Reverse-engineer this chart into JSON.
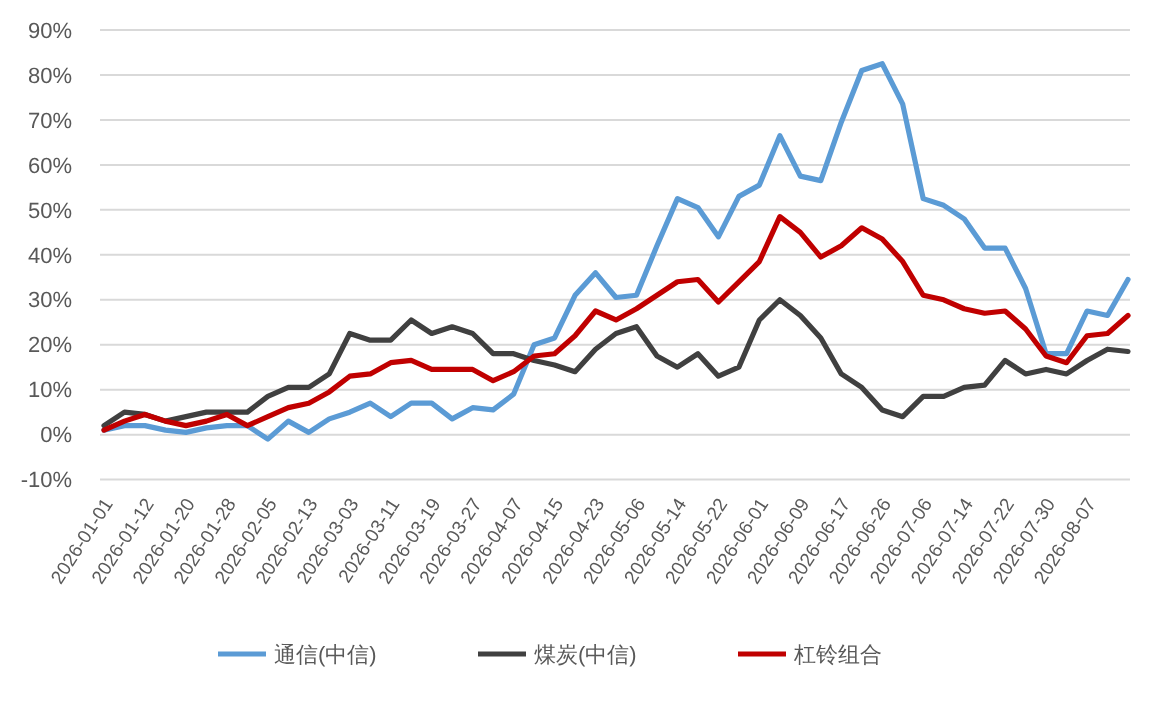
{
  "chart_data": {
    "type": "line",
    "categories": [
      "2026-01-01",
      null,
      "2026-01-12",
      null,
      "2026-01-20",
      null,
      "2026-01-28",
      null,
      "2026-02-05",
      null,
      "2026-02-13",
      null,
      "2026-03-03",
      null,
      "2026-03-11",
      null,
      "2026-03-19",
      null,
      "2026-03-27",
      null,
      "2026-04-07",
      null,
      "2026-04-15",
      null,
      "2026-04-23",
      null,
      "2026-05-06",
      null,
      "2026-05-14",
      null,
      "2026-05-22",
      null,
      "2026-06-01",
      null,
      "2026-06-09",
      null,
      "2026-06-17",
      null,
      "2026-06-26",
      null,
      "2026-07-06",
      null,
      "2026-07-14",
      null,
      "2026-07-22",
      null,
      "2026-07-30",
      null,
      "2026-08-07",
      null,
      null
    ],
    "series": [
      {
        "name": "通信(中信)",
        "color": "#5b9bd5",
        "values": [
          1,
          2,
          2,
          1,
          0.5,
          1.5,
          2,
          2,
          -1,
          3,
          0.5,
          3.5,
          5,
          7,
          4,
          7,
          7,
          3.5,
          6,
          5.5,
          9,
          20,
          21.5,
          31,
          36,
          30.5,
          31,
          42,
          52.5,
          50.5,
          44,
          53,
          55.5,
          66.5,
          57.5,
          56.5,
          69.5,
          81,
          82.5,
          73.5,
          52.5,
          51,
          48,
          41.5,
          41.5,
          32.5,
          18,
          18,
          27.5,
          26.5,
          34.5
        ]
      },
      {
        "name": "煤炭(中信)",
        "color": "#404040",
        "values": [
          2,
          5,
          4.5,
          3,
          4,
          5,
          5,
          5,
          8.5,
          10.5,
          10.5,
          13.5,
          22.5,
          21,
          21,
          25.5,
          22.5,
          24,
          22.5,
          18,
          18,
          16.5,
          15.5,
          14,
          19,
          22.5,
          24,
          17.5,
          15,
          18,
          13,
          15,
          25.5,
          30,
          26.5,
          21.5,
          13.5,
          10.5,
          5.5,
          4,
          8.5,
          8.5,
          10.5,
          11,
          16.5,
          13.5,
          14.5,
          13.5,
          16.5,
          19,
          18.5
        ]
      },
      {
        "name": "杠铃组合",
        "color": "#c00000",
        "values": [
          1,
          3,
          4.5,
          3,
          2,
          3,
          4.5,
          2,
          4,
          6,
          7,
          9.5,
          13,
          13.5,
          16,
          16.5,
          14.5,
          14.5,
          14.5,
          12,
          14,
          17.5,
          18,
          22,
          27.5,
          25.5,
          28,
          31,
          34,
          34.5,
          29.5,
          34,
          38.5,
          48.5,
          45,
          39.5,
          42,
          46,
          43.5,
          38.5,
          31,
          30,
          28,
          27,
          27.5,
          23.5,
          17.5,
          16,
          22,
          22.5,
          26.5
        ]
      }
    ],
    "ylim": [
      -10,
      90
    ],
    "yticks": [
      {
        "value": -10,
        "label": "-10%"
      },
      {
        "value": 0,
        "label": "0%"
      },
      {
        "value": 10,
        "label": "10%"
      },
      {
        "value": 20,
        "label": "20%"
      },
      {
        "value": 30,
        "label": "30%"
      },
      {
        "value": 40,
        "label": "40%"
      },
      {
        "value": 50,
        "label": "50%"
      },
      {
        "value": 60,
        "label": "60%"
      },
      {
        "value": 70,
        "label": "70%"
      },
      {
        "value": 80,
        "label": "80%"
      },
      {
        "value": 90,
        "label": "90%"
      }
    ],
    "grid": "y",
    "legend": "bottom",
    "marker": "none",
    "line_style": "solid"
  }
}
